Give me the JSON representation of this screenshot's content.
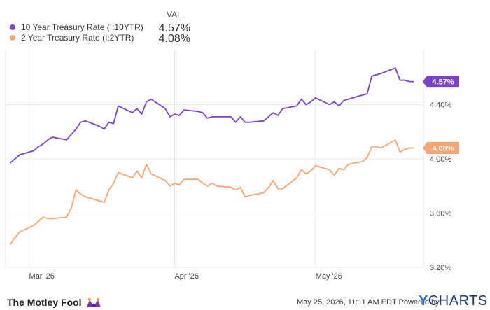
{
  "legend": {
    "header": "VAL",
    "items": [
      {
        "label": "10 Year Treasury Rate (I:10YTR)",
        "value": "4.57%",
        "color": "#7a44c9"
      },
      {
        "label": "2 Year Treasury Rate (I:2YTR)",
        "value": "4.08%",
        "color": "#f7a673"
      }
    ]
  },
  "chart_data": {
    "type": "line",
    "x_ticks": [
      "Mar '26",
      "Apr '26",
      "May '26"
    ],
    "y_ticks": [
      "3.20%",
      "3.60%",
      "4.00%",
      "4.40%"
    ],
    "ylim": [
      3.2,
      4.8
    ],
    "grid": true,
    "series": [
      {
        "name": "10 Year Treasury Rate (I:10YTR)",
        "color": "#7a44c9",
        "end_label": "4.57%",
        "x": [
          "2026-02-25",
          "2026-02-26",
          "2026-02-27",
          "2026-03-02",
          "2026-03-03",
          "2026-03-04",
          "2026-03-05",
          "2026-03-06",
          "2026-03-09",
          "2026-03-10",
          "2026-03-11",
          "2026-03-12",
          "2026-03-13",
          "2026-03-16",
          "2026-03-17",
          "2026-03-18",
          "2026-03-19",
          "2026-03-20",
          "2026-03-23",
          "2026-03-24",
          "2026-03-25",
          "2026-03-26",
          "2026-03-27",
          "2026-03-30",
          "2026-03-31",
          "2026-04-01",
          "2026-04-02",
          "2026-04-03",
          "2026-04-06",
          "2026-04-07",
          "2026-04-08",
          "2026-04-09",
          "2026-04-10",
          "2026-04-13",
          "2026-04-14",
          "2026-04-15",
          "2026-04-16",
          "2026-04-17",
          "2026-04-20",
          "2026-04-21",
          "2026-04-22",
          "2026-04-23",
          "2026-04-24",
          "2026-04-27",
          "2026-04-28",
          "2026-04-29",
          "2026-04-30",
          "2026-05-01",
          "2026-05-04",
          "2026-05-05",
          "2026-05-06",
          "2026-05-07",
          "2026-05-08",
          "2026-05-11",
          "2026-05-12",
          "2026-05-13",
          "2026-05-14",
          "2026-05-15",
          "2026-05-18",
          "2026-05-19",
          "2026-05-20",
          "2026-05-21",
          "2026-05-22"
        ],
        "values": [
          3.97,
          4.0,
          4.03,
          4.06,
          4.09,
          4.11,
          4.14,
          4.16,
          4.14,
          4.18,
          4.22,
          4.27,
          4.28,
          4.24,
          4.22,
          4.27,
          4.26,
          4.39,
          4.34,
          4.37,
          4.33,
          4.42,
          4.44,
          4.37,
          4.31,
          4.33,
          4.32,
          4.36,
          4.35,
          4.34,
          4.3,
          4.31,
          4.31,
          4.31,
          4.27,
          4.31,
          4.27,
          4.27,
          4.28,
          4.31,
          4.34,
          4.32,
          4.37,
          4.39,
          4.44,
          4.4,
          4.42,
          4.45,
          4.4,
          4.42,
          4.39,
          4.43,
          4.44,
          4.47,
          4.48,
          4.61,
          4.62,
          4.63,
          4.67,
          4.58,
          4.58,
          4.57,
          4.57
        ]
      },
      {
        "name": "2 Year Treasury Rate (I:2YTR)",
        "color": "#f7a673",
        "end_label": "4.08%",
        "x": [
          "2026-02-25",
          "2026-02-26",
          "2026-02-27",
          "2026-03-02",
          "2026-03-03",
          "2026-03-04",
          "2026-03-05",
          "2026-03-06",
          "2026-03-09",
          "2026-03-10",
          "2026-03-11",
          "2026-03-12",
          "2026-03-13",
          "2026-03-16",
          "2026-03-17",
          "2026-03-18",
          "2026-03-19",
          "2026-03-20",
          "2026-03-23",
          "2026-03-24",
          "2026-03-25",
          "2026-03-26",
          "2026-03-27",
          "2026-03-30",
          "2026-03-31",
          "2026-04-01",
          "2026-04-02",
          "2026-04-03",
          "2026-04-06",
          "2026-04-07",
          "2026-04-08",
          "2026-04-09",
          "2026-04-10",
          "2026-04-13",
          "2026-04-14",
          "2026-04-15",
          "2026-04-16",
          "2026-04-17",
          "2026-04-20",
          "2026-04-21",
          "2026-04-22",
          "2026-04-23",
          "2026-04-24",
          "2026-04-27",
          "2026-04-28",
          "2026-04-29",
          "2026-04-30",
          "2026-05-01",
          "2026-05-04",
          "2026-05-05",
          "2026-05-06",
          "2026-05-07",
          "2026-05-08",
          "2026-05-11",
          "2026-05-12",
          "2026-05-13",
          "2026-05-14",
          "2026-05-15",
          "2026-05-18",
          "2026-05-19",
          "2026-05-20",
          "2026-05-21",
          "2026-05-22"
        ],
        "values": [
          3.37,
          3.42,
          3.46,
          3.51,
          3.54,
          3.57,
          3.56,
          3.56,
          3.57,
          3.64,
          3.77,
          3.74,
          3.72,
          3.69,
          3.68,
          3.77,
          3.82,
          3.9,
          3.86,
          3.91,
          3.86,
          3.96,
          3.89,
          3.84,
          3.8,
          3.82,
          3.81,
          3.85,
          3.85,
          3.82,
          3.8,
          3.82,
          3.8,
          3.79,
          3.77,
          3.79,
          3.72,
          3.73,
          3.75,
          3.79,
          3.84,
          3.78,
          3.78,
          3.86,
          3.92,
          3.89,
          3.91,
          3.95,
          3.92,
          3.88,
          3.93,
          3.92,
          3.96,
          3.98,
          4.01,
          4.09,
          4.09,
          4.08,
          4.14,
          4.05,
          4.07,
          4.08,
          4.08
        ]
      }
    ]
  },
  "footer": {
    "brand": "The Motley Fool",
    "timestamp": "May 25, 2026, 11:11 AM EDT Powered by",
    "logo_y": "Y",
    "logo_rest": "CHARTS"
  }
}
